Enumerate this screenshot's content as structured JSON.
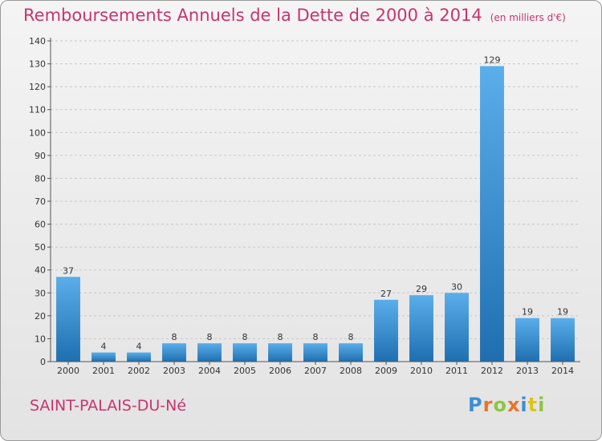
{
  "title": "Remboursements Annuels de la Dette de 2000 à 2014",
  "unit_note": "(en milliers d'€)",
  "commune": "SAINT-PALAIS-DU-Né",
  "logo": {
    "letters": [
      "P",
      "r",
      "o",
      "x",
      "i",
      "t",
      "i"
    ],
    "colors": [
      "#3a8fd6",
      "#e9742b",
      "#8cc63f",
      "#e9742b",
      "#3a8fd6",
      "#e0c21b",
      "#8cc63f"
    ]
  },
  "colors": {
    "title": "#c8356e",
    "bar_top": "#5aaeea",
    "bar_bottom": "#1f6fb0"
  },
  "chart_data": {
    "type": "bar",
    "title": "Remboursements Annuels de la Dette de 2000 à 2014",
    "xlabel": "",
    "ylabel": "",
    "categories": [
      "2000",
      "2001",
      "2002",
      "2003",
      "2004",
      "2005",
      "2006",
      "2007",
      "2008",
      "2009",
      "2010",
      "2011",
      "2012",
      "2013",
      "2014"
    ],
    "values": [
      37,
      4,
      4,
      8,
      8,
      8,
      8,
      8,
      8,
      27,
      29,
      30,
      129,
      19,
      19
    ],
    "ylim": [
      0,
      140
    ],
    "yticks": [
      0,
      10,
      20,
      30,
      40,
      50,
      60,
      70,
      80,
      90,
      100,
      110,
      120,
      130,
      140
    ],
    "grid": true
  }
}
